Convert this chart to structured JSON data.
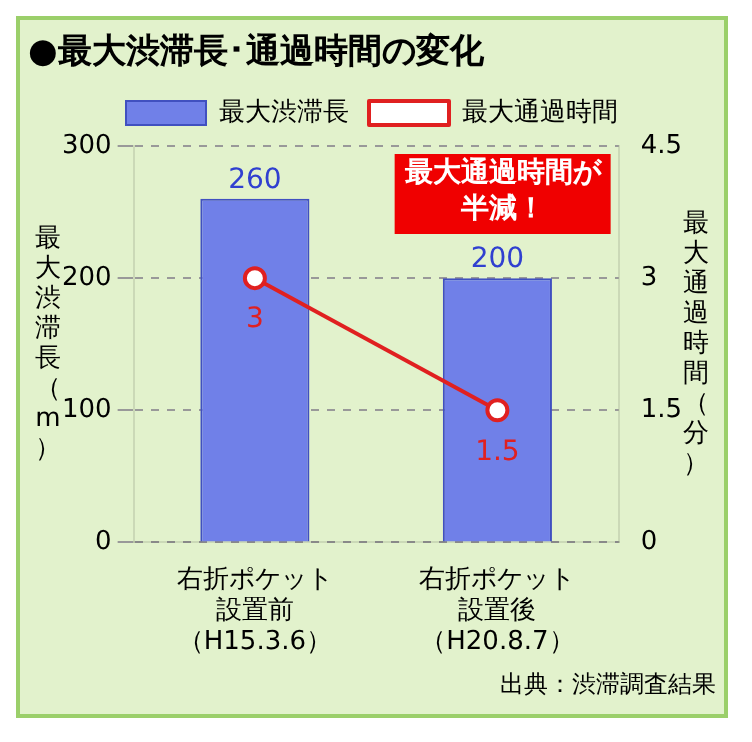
{
  "chart_data": {
    "type": "bar",
    "title": "●最大渋滞長･通過時間の変化",
    "ylabel": "最大渋滞長（m）",
    "y2label": "最大通過時間（分）",
    "categories": [
      "右折ポケット設置前（H15.3.6）",
      "右折ポケット設置後（H20.8.7）"
    ],
    "series": [
      {
        "name": "最大渋滞長",
        "color": "#7080e8",
        "values": [
          260,
          200
        ]
      },
      {
        "name": "最大通過時間",
        "type": "line",
        "axis": "y2",
        "color": "#e02020",
        "values": [
          3,
          1.5
        ]
      }
    ],
    "ylim": [
      0,
      300
    ],
    "yticks": [
      0,
      100,
      200,
      300
    ],
    "y2lim": [
      0,
      4.5
    ],
    "y2ticks": [
      0,
      1.5,
      3,
      4.5
    ],
    "grid": "y",
    "legend": "top",
    "marker": "circle",
    "line_style": "solid",
    "data_labels": true,
    "annotations": [
      "最大通過時間が半減！",
      "出典：渋滞調査結果"
    ]
  }
}
